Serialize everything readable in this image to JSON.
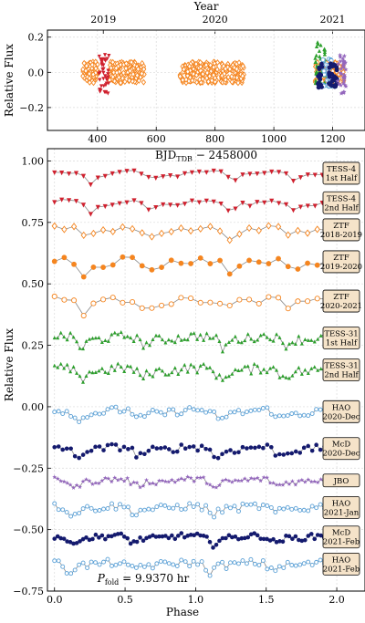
{
  "chart_data": [
    {
      "type": "scatter",
      "panel": "top",
      "top_axis": {
        "label": "Year",
        "tick_labels": [
          "2019",
          "2020",
          "2021"
        ],
        "tick_positions": [
          420,
          800,
          1200
        ]
      },
      "xlabel_main": "BJD",
      "xlabel_sub": "TDB",
      "xlabel_rest": " − 2458000",
      "ylabel": "Relative Flux",
      "xlim": [
        230,
        1310
      ],
      "ylim": [
        -0.33,
        0.24
      ],
      "xticks": [
        400,
        600,
        800,
        1000,
        1200
      ],
      "yticks": [
        0.2,
        0.0,
        -0.2
      ],
      "ytick_labels": [
        "0.2",
        "0.0",
        "−0.2"
      ],
      "grid": true,
      "series": [
        {
          "color": "#f5851f",
          "marker": "diamond-open",
          "x_ranges": [
            [
              350,
              405
            ],
            [
              440,
              560
            ],
            [
              680,
              810
            ],
            [
              820,
              900
            ],
            [
              1140,
              1180
            ],
            [
              1200,
              1240
            ]
          ],
          "y_center": 0.0,
          "y_spread": 0.06
        },
        {
          "color": "#d0202e",
          "marker": "triangle-down",
          "x_ranges": [
            [
              405,
              440
            ]
          ],
          "y_center": -0.01,
          "y_spread": 0.12
        },
        {
          "color": "#2ca02c",
          "marker": "triangle",
          "x_ranges": [
            [
              1140,
              1175
            ]
          ],
          "y_center": 0.05,
          "y_spread": 0.13
        },
        {
          "color": "#5aa0d6",
          "marker": "circle-open",
          "x_ranges": [
            [
              1165,
              1200
            ]
          ],
          "y_center": 0.0,
          "y_spread": 0.08
        },
        {
          "color": "#141a6e",
          "marker": "circle",
          "x_ranges": [
            [
              1150,
              1165
            ],
            [
              1185,
              1215
            ]
          ],
          "y_center": -0.02,
          "y_spread": 0.07
        },
        {
          "color": "#9467bd",
          "marker": "star",
          "x_ranges": [
            [
              1215,
              1245
            ]
          ],
          "y_center": 0.0,
          "y_spread": 0.12
        }
      ]
    },
    {
      "type": "line",
      "panel": "bottom",
      "xlabel": "Phase",
      "ylabel": "Relative Flux",
      "xlim": [
        -0.05,
        2.2
      ],
      "ylim": [
        -0.75,
        1.05
      ],
      "xticks": [
        0.0,
        0.5,
        1.0,
        1.5,
        2.0
      ],
      "xtick_labels": [
        "0.0",
        "0.5",
        "1.0",
        "1.5",
        "2.0"
      ],
      "yticks": [
        1.0,
        0.75,
        0.5,
        0.25,
        0.0,
        -0.25,
        -0.5,
        -0.75
      ],
      "ytick_labels": [
        "1.00",
        "0.75",
        "0.50",
        "0.25",
        "0.00",
        "−0.25",
        "−0.50",
        "−0.75"
      ],
      "grid": true,
      "annotation": {
        "prefix": "P",
        "subscript": "fold",
        "value": " = 9.9370 hr"
      },
      "series": [
        {
          "name": "TESS-4 1st Half",
          "label_lines": [
            "TESS-4",
            "1st Half"
          ],
          "color": "#d0202e",
          "marker": "triangle-down",
          "offset": 0.95,
          "amplitude": 0.04,
          "n": 40,
          "noise": 0.008
        },
        {
          "name": "TESS-4 2nd Half",
          "label_lines": [
            "TESS-4",
            "2nd Half"
          ],
          "color": "#d0202e",
          "marker": "triangle-down",
          "offset": 0.83,
          "amplitude": 0.04,
          "n": 40,
          "noise": 0.008
        },
        {
          "name": "ZTF 2018-2019",
          "label_lines": [
            "ZTF",
            "2018-2019"
          ],
          "color": "#f5851f",
          "marker": "diamond-open",
          "offset": 0.72,
          "amplitude": 0.03,
          "n": 30,
          "noise": 0.012
        },
        {
          "name": "ZTF 2019-2020",
          "label_lines": [
            "ZTF",
            "2019-2020"
          ],
          "color": "#f5851f",
          "marker": "circle",
          "offset": 0.59,
          "amplitude": 0.05,
          "n": 30,
          "noise": 0.018
        },
        {
          "name": "ZTF 2020-2021",
          "label_lines": [
            "ZTF",
            "2020-2021"
          ],
          "color": "#f5851f",
          "marker": "circle-open",
          "offset": 0.43,
          "amplitude": 0.04,
          "n": 30,
          "noise": 0.015
        },
        {
          "name": "TESS-31 1st Half",
          "label_lines": [
            "TESS-31",
            "1st Half"
          ],
          "color": "#2ca02c",
          "marker": "triangle",
          "offset": 0.28,
          "amplitude": 0.04,
          "n": 90,
          "noise": 0.018
        },
        {
          "name": "TESS-31 2nd Half",
          "label_lines": [
            "TESS-31",
            "2nd Half"
          ],
          "color": "#2ca02c",
          "marker": "triangle",
          "offset": 0.15,
          "amplitude": 0.04,
          "n": 90,
          "noise": 0.02
        },
        {
          "name": "HAO 2020-Dec",
          "label_lines": [
            "HAO",
            "2020-Dec"
          ],
          "color": "#5aa0d6",
          "marker": "circle-open",
          "offset": -0.02,
          "amplitude": 0.04,
          "n": 70,
          "noise": 0.015
        },
        {
          "name": "McD 2020-Dec",
          "label_lines": [
            "McD",
            "2020-Dec"
          ],
          "color": "#141a6e",
          "marker": "circle",
          "offset": -0.17,
          "amplitude": 0.04,
          "n": 70,
          "noise": 0.015
        },
        {
          "name": "JBO",
          "label_lines": [
            "JBO"
          ],
          "color": "#9467bd",
          "marker": "star",
          "offset": -0.3,
          "amplitude": 0.03,
          "n": 90,
          "noise": 0.012
        },
        {
          "name": "HAO 2021-Jan",
          "label_lines": [
            "HAO",
            "2021-Jan"
          ],
          "color": "#5aa0d6",
          "marker": "circle-open",
          "offset": -0.41,
          "amplitude": 0.03,
          "n": 70,
          "noise": 0.015
        },
        {
          "name": "McD 2021-Feb",
          "label_lines": [
            "McD",
            "2021-Feb"
          ],
          "color": "#141a6e",
          "marker": "circle",
          "offset": -0.53,
          "amplitude": 0.03,
          "n": 90,
          "noise": 0.012
        },
        {
          "name": "HAO 2021-Feb",
          "label_lines": [
            "HAO",
            "2021-Feb"
          ],
          "color": "#5aa0d6",
          "marker": "circle-open",
          "offset": -0.64,
          "amplitude": 0.03,
          "n": 70,
          "noise": 0.015
        }
      ]
    }
  ]
}
